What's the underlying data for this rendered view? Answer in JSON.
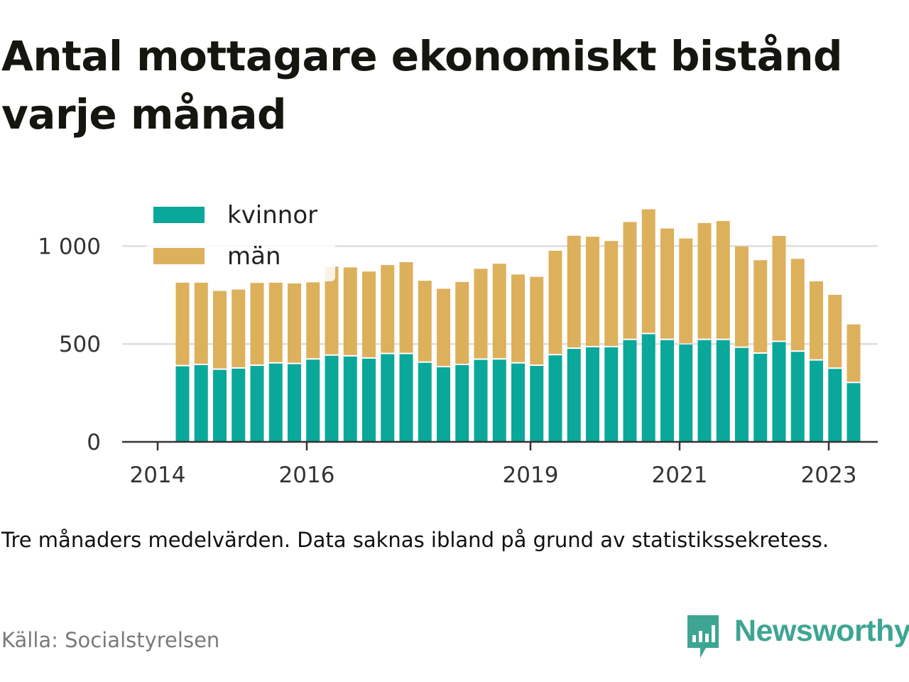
{
  "title": "Antal mottagare ekonomiskt bistånd varje månad",
  "note": "Tre månaders medelvärden. Data saknas ibland på grund av statistikssekretess.",
  "source": "Källa: Socialstyrelsen",
  "brand": {
    "name": "Newsworthy",
    "icon": "newsworthy-logo-icon",
    "color": "#3ea593"
  },
  "colors": {
    "kvinnor": "#0aa89a",
    "man": "#ddb05c",
    "grid": "#dddddd",
    "axis": "#333333"
  },
  "chart_data": {
    "type": "bar",
    "stacked": true,
    "legend": {
      "placement": "top-left",
      "entries": [
        "kvinnor",
        "män"
      ]
    },
    "x_ticks": [
      "2014",
      "2016",
      "2019",
      "2021",
      "2023"
    ],
    "y_ticks": [
      "0",
      "500",
      "1 000"
    ],
    "ylim": [
      0,
      1250
    ],
    "grid": true,
    "x": [
      "2014-05",
      "2014-08",
      "2014-11",
      "2015-02",
      "2015-05",
      "2015-08",
      "2015-11",
      "2016-02",
      "2016-05",
      "2016-08",
      "2016-11",
      "2017-02",
      "2017-05",
      "2017-08",
      "2017-11",
      "2018-02",
      "2018-05",
      "2018-08",
      "2018-11",
      "2019-02",
      "2019-05",
      "2019-08",
      "2019-11",
      "2020-02",
      "2020-05",
      "2020-08",
      "2020-11",
      "2021-02",
      "2021-05",
      "2021-08",
      "2021-11",
      "2022-02",
      "2022-05",
      "2022-08",
      "2022-11",
      "2023-02",
      "2023-05"
    ],
    "series": [
      {
        "name": "kvinnor",
        "values": [
          386,
          392,
          368,
          374,
          388,
          400,
          397,
          420,
          440,
          436,
          425,
          448,
          448,
          404,
          381,
          392,
          419,
          420,
          400,
          388,
          442,
          475,
          483,
          483,
          520,
          550,
          520,
          497,
          520,
          520,
          480,
          450,
          510,
          460,
          415,
          373,
          300
        ]
      },
      {
        "name": "män",
        "values": [
          427,
          421,
          403,
          404,
          424,
          413,
          412,
          395,
          455,
          455,
          445,
          455,
          470,
          419,
          401,
          425,
          465,
          490,
          455,
          455,
          534,
          578,
          565,
          543,
          603,
          638,
          570,
          542,
          598,
          608,
          518,
          478,
          542,
          475,
          405,
          378,
          300
        ]
      }
    ]
  }
}
